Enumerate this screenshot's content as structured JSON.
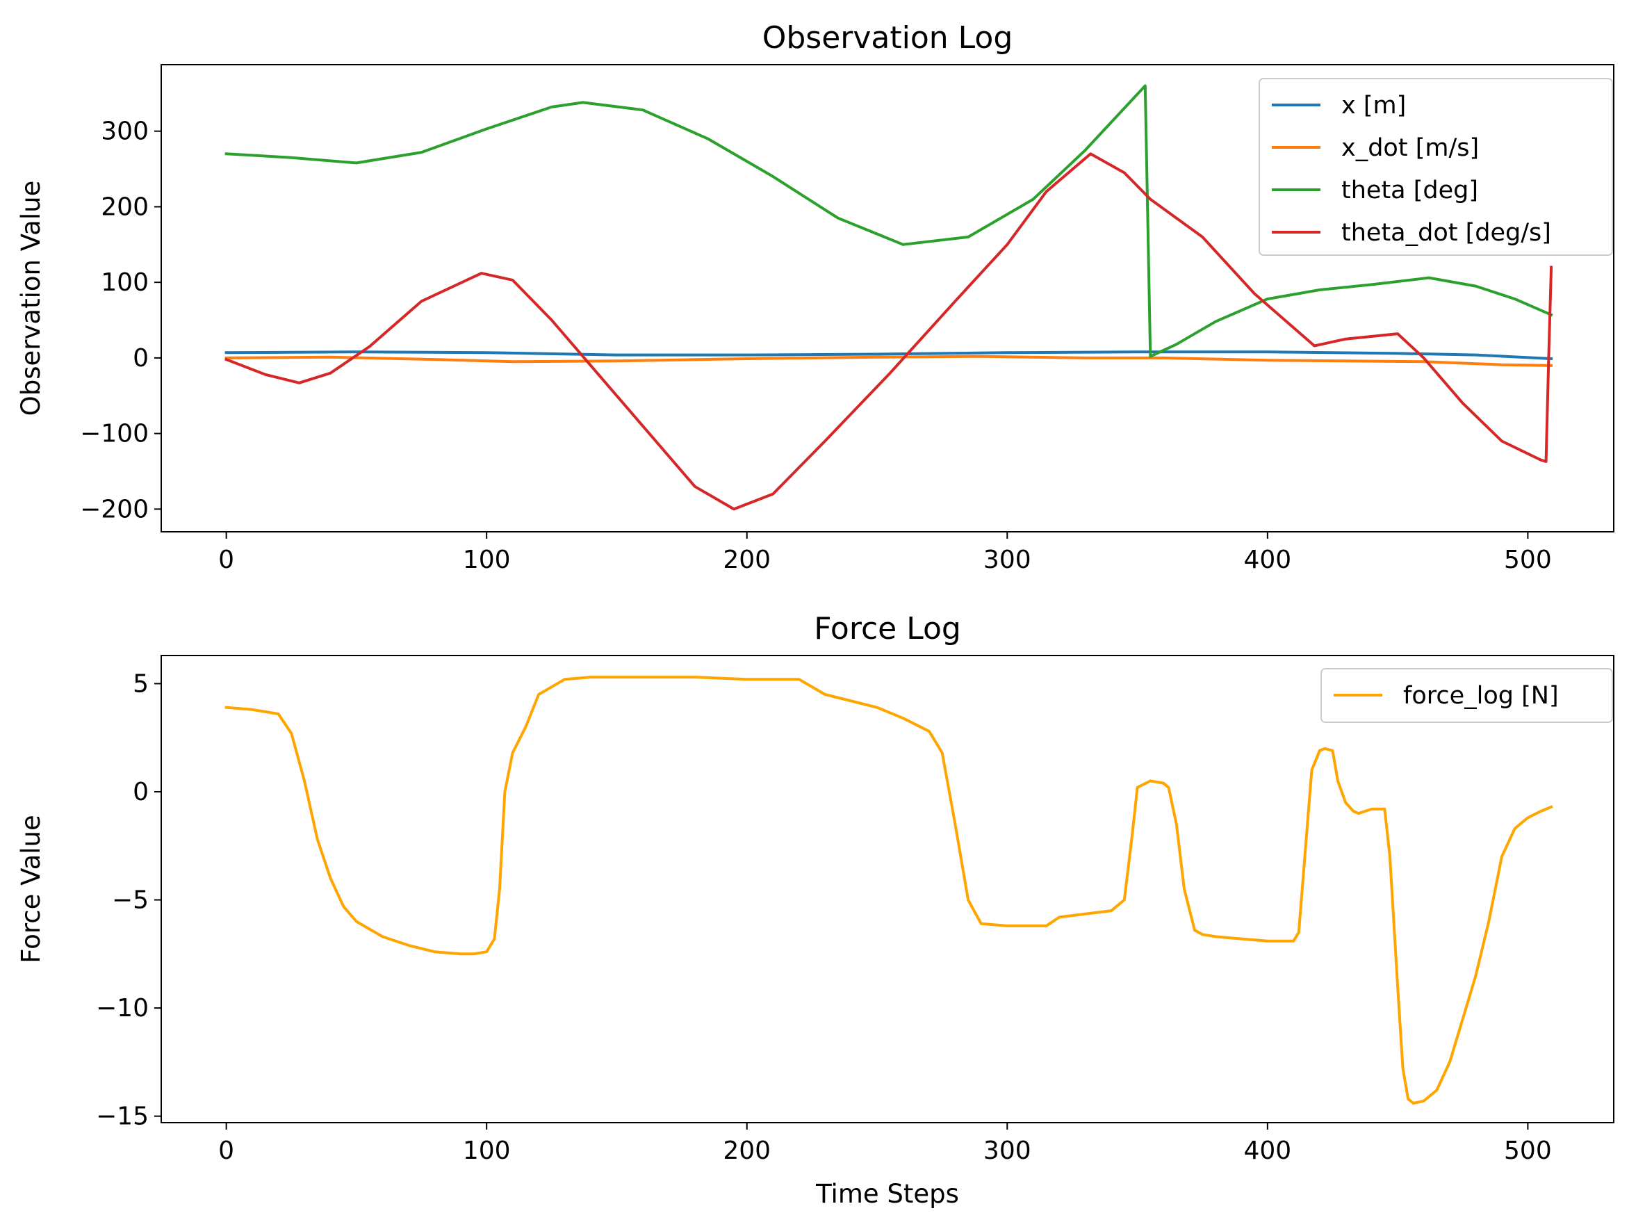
{
  "chart_data": [
    {
      "type": "line",
      "title": "Observation Log",
      "xlabel": "",
      "ylabel": "Observation Value",
      "xlim": [
        -25,
        533
      ],
      "ylim": [
        -230,
        388
      ],
      "xticks": [
        0,
        100,
        200,
        300,
        400,
        500
      ],
      "yticks": [
        -200,
        -100,
        0,
        100,
        200,
        300
      ],
      "ytick_labels": [
        "−200",
        "−100",
        "0",
        "100",
        "200",
        "300"
      ],
      "grid": false,
      "legend_position": "upper right",
      "series": [
        {
          "name": "x [m]",
          "color": "#1f77b4",
          "x": [
            0,
            50,
            100,
            150,
            200,
            250,
            300,
            350,
            400,
            450,
            480,
            509
          ],
          "y": [
            7,
            8,
            7,
            4,
            4,
            5,
            7,
            8,
            8,
            6,
            4,
            -1
          ]
        },
        {
          "name": "x_dot [m/s]",
          "color": "#ff7f0e",
          "x": [
            0,
            40,
            80,
            110,
            150,
            200,
            250,
            290,
            330,
            360,
            400,
            430,
            460,
            490,
            509
          ],
          "y": [
            0,
            1,
            -2,
            -5,
            -4,
            -1,
            1,
            2,
            0,
            0,
            -3,
            -4,
            -5,
            -9,
            -10
          ]
        },
        {
          "name": "theta [deg]",
          "color": "#2ca02c",
          "x": [
            0,
            25,
            50,
            75,
            100,
            125,
            137,
            160,
            185,
            210,
            235,
            260,
            285,
            310,
            330,
            353,
            354,
            355,
            365,
            380,
            400,
            420,
            440,
            462,
            480,
            495,
            509
          ],
          "y": [
            270,
            265,
            258,
            272,
            303,
            332,
            338,
            328,
            290,
            240,
            185,
            150,
            160,
            210,
            275,
            360,
            180,
            2,
            18,
            48,
            78,
            90,
            97,
            106,
            95,
            78,
            57
          ]
        },
        {
          "name": "theta_dot [deg/s]",
          "color": "#d62728",
          "x": [
            0,
            15,
            28,
            40,
            55,
            75,
            98,
            110,
            125,
            140,
            160,
            180,
            195,
            210,
            230,
            255,
            280,
            300,
            315,
            332,
            345,
            355,
            375,
            395,
            418,
            430,
            450,
            460,
            475,
            490,
            505,
            507,
            508,
            509
          ],
          "y": [
            -2,
            -22,
            -33,
            -20,
            15,
            75,
            112,
            103,
            50,
            -10,
            -90,
            -170,
            -200,
            -180,
            -110,
            -20,
            75,
            150,
            220,
            270,
            245,
            210,
            160,
            85,
            16,
            25,
            32,
            0,
            -60,
            -110,
            -135,
            -137,
            0,
            120
          ]
        }
      ]
    },
    {
      "type": "line",
      "title": "Force Log",
      "xlabel": "Time Steps",
      "ylabel": "Force Value",
      "xlim": [
        -25,
        533
      ],
      "ylim": [
        -15.3,
        6.3
      ],
      "xticks": [
        0,
        100,
        200,
        300,
        400,
        500
      ],
      "yticks": [
        -15,
        -10,
        -5,
        0,
        5
      ],
      "ytick_labels": [
        "−15",
        "−10",
        "−5",
        "0",
        "5"
      ],
      "grid": false,
      "legend_position": "upper right",
      "series": [
        {
          "name": "force_log [N]",
          "color": "#ffa500",
          "x": [
            0,
            10,
            20,
            25,
            30,
            35,
            40,
            45,
            50,
            60,
            70,
            80,
            90,
            95,
            100,
            103,
            105,
            107,
            110,
            115,
            120,
            130,
            140,
            150,
            180,
            200,
            220,
            230,
            250,
            260,
            270,
            275,
            280,
            285,
            290,
            300,
            310,
            315,
            320,
            340,
            345,
            348,
            350,
            355,
            360,
            362,
            365,
            368,
            372,
            375,
            380,
            390,
            400,
            410,
            412,
            415,
            417,
            420,
            422,
            425,
            427,
            430,
            433,
            435,
            440,
            445,
            447,
            450,
            452,
            454,
            456,
            460,
            465,
            470,
            475,
            480,
            485,
            490,
            495,
            500,
            505,
            509
          ],
          "y": [
            3.9,
            3.8,
            3.6,
            2.7,
            0.5,
            -2.2,
            -4.0,
            -5.3,
            -6.0,
            -6.7,
            -7.1,
            -7.4,
            -7.5,
            -7.5,
            -7.4,
            -6.8,
            -4.5,
            0.0,
            1.8,
            3.0,
            4.5,
            5.2,
            5.3,
            5.3,
            5.3,
            5.2,
            5.2,
            4.5,
            3.9,
            3.4,
            2.8,
            1.8,
            -1.5,
            -5.0,
            -6.1,
            -6.2,
            -6.2,
            -6.2,
            -5.8,
            -5.5,
            -5.0,
            -2.0,
            0.2,
            0.5,
            0.4,
            0.2,
            -1.5,
            -4.5,
            -6.4,
            -6.6,
            -6.7,
            -6.8,
            -6.9,
            -6.9,
            -6.5,
            -2.0,
            1.0,
            1.9,
            2.0,
            1.9,
            0.5,
            -0.5,
            -0.9,
            -1.0,
            -0.8,
            -0.8,
            -3.0,
            -9.0,
            -12.8,
            -14.2,
            -14.4,
            -14.3,
            -13.8,
            -12.5,
            -10.5,
            -8.5,
            -6.0,
            -3.0,
            -1.7,
            -1.2,
            -0.9,
            -0.7
          ]
        }
      ]
    }
  ]
}
